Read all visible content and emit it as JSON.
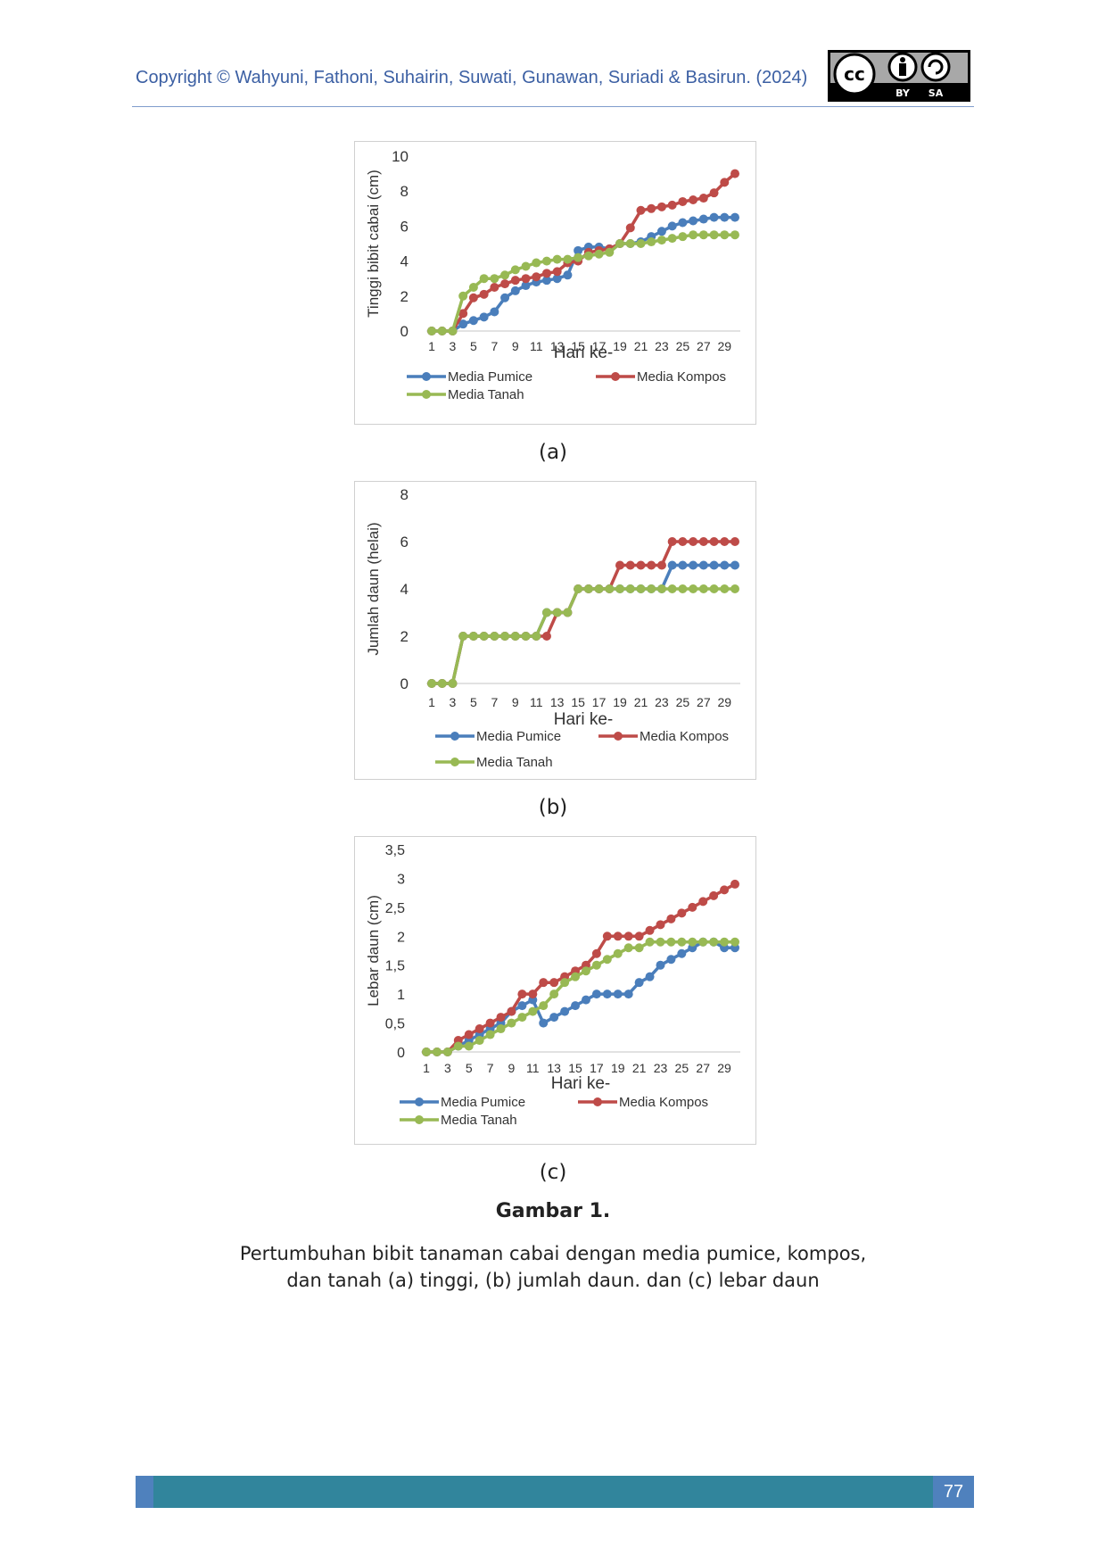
{
  "header": {
    "copyright": "Copyright © Wahyuni, Fathoni, Suhairin, Suwati, Gunawan, Suriadi & Basirun. (2024)",
    "license_badge": {
      "cc": "cc",
      "by": "BY",
      "sa": "SA"
    }
  },
  "colors": {
    "pumice": "#4a7ebb",
    "kompos": "#be4b48",
    "tanah": "#98b954"
  },
  "panel_labels": [
    "(a)",
    "(b)",
    "(c)"
  ],
  "figure": {
    "title": "Gambar 1.",
    "caption_line1": "Pertumbuhan bibit tanaman cabai dengan media pumice, kompos,",
    "caption_line2": "dan tanah (a) tinggi, (b) jumlah daun. dan (c) lebar daun"
  },
  "page_number": "77",
  "chart_data": [
    {
      "type": "line",
      "xlabel": "Hari ke-",
      "ylabel": "Tinggi bibit cabai (cm)",
      "ylim": [
        0,
        10
      ],
      "yticks": [
        "0",
        "2",
        "4",
        "6",
        "8",
        "10"
      ],
      "x": [
        1,
        2,
        3,
        4,
        5,
        6,
        7,
        8,
        9,
        10,
        11,
        12,
        13,
        14,
        15,
        16,
        17,
        18,
        19,
        20,
        21,
        22,
        23,
        24,
        25,
        26,
        27,
        28,
        29,
        30
      ],
      "xtick_labels": [
        "1",
        "3",
        "5",
        "7",
        "9",
        "11",
        "13",
        "15",
        "17",
        "19",
        "21",
        "23",
        "25",
        "27",
        "29"
      ],
      "legend": "bottom",
      "series": [
        {
          "name": "Media Pumice",
          "values": [
            0,
            0,
            0,
            0.4,
            0.6,
            0.8,
            1.1,
            1.9,
            2.3,
            2.6,
            2.8,
            2.9,
            3.0,
            3.2,
            4.6,
            4.8,
            4.8,
            4.7,
            5.0,
            5.0,
            5.1,
            5.4,
            5.7,
            6.0,
            6.2,
            6.3,
            6.4,
            6.5,
            6.5,
            6.5
          ]
        },
        {
          "name": "Media Kompos",
          "values": [
            0,
            0,
            0,
            1.0,
            1.9,
            2.1,
            2.5,
            2.7,
            2.9,
            3.0,
            3.1,
            3.3,
            3.4,
            3.9,
            4.0,
            4.5,
            4.6,
            4.7,
            5.0,
            5.9,
            6.9,
            7.0,
            7.1,
            7.2,
            7.4,
            7.5,
            7.6,
            7.9,
            8.5,
            9.0
          ]
        },
        {
          "name": "Media Tanah",
          "values": [
            0,
            0,
            0,
            2.0,
            2.5,
            3.0,
            3.0,
            3.2,
            3.5,
            3.7,
            3.9,
            4.0,
            4.1,
            4.1,
            4.2,
            4.3,
            4.4,
            4.5,
            5.0,
            5.0,
            5.0,
            5.1,
            5.2,
            5.3,
            5.4,
            5.5,
            5.5,
            5.5,
            5.5,
            5.5
          ]
        }
      ]
    },
    {
      "type": "line",
      "xlabel": "Hari ke-",
      "ylabel": "Jumlah daun (helai)",
      "ylim": [
        0,
        8
      ],
      "yticks": [
        "0",
        "2",
        "4",
        "6",
        "8"
      ],
      "x": [
        1,
        2,
        3,
        4,
        5,
        6,
        7,
        8,
        9,
        10,
        11,
        12,
        13,
        14,
        15,
        16,
        17,
        18,
        19,
        20,
        21,
        22,
        23,
        24,
        25,
        26,
        27,
        28,
        29,
        30
      ],
      "xtick_labels": [
        "1",
        "3",
        "5",
        "7",
        "9",
        "11",
        "13",
        "15",
        "17",
        "19",
        "21",
        "23",
        "25",
        "27",
        "29"
      ],
      "legend": "bottom",
      "series": [
        {
          "name": "Media Pumice",
          "values": [
            0,
            0,
            0,
            2,
            2,
            2,
            2,
            2,
            2,
            2,
            2,
            3,
            3,
            3,
            4,
            4,
            4,
            4,
            4,
            4,
            4,
            4,
            4,
            5,
            5,
            5,
            5,
            5,
            5,
            5
          ]
        },
        {
          "name": "Media Kompos",
          "values": [
            0,
            0,
            0,
            2,
            2,
            2,
            2,
            2,
            2,
            2,
            2,
            2,
            3,
            3,
            4,
            4,
            4,
            4,
            5,
            5,
            5,
            5,
            5,
            6,
            6,
            6,
            6,
            6,
            6,
            6
          ]
        },
        {
          "name": "Media Tanah",
          "values": [
            0,
            0,
            0,
            2,
            2,
            2,
            2,
            2,
            2,
            2,
            2,
            3,
            3,
            3,
            4,
            4,
            4,
            4,
            4,
            4,
            4,
            4,
            4,
            4,
            4,
            4,
            4,
            4,
            4,
            4
          ]
        }
      ]
    },
    {
      "type": "line",
      "xlabel": "Hari ke-",
      "ylabel": "Lebar daun (cm)",
      "ylim": [
        0,
        3.5
      ],
      "yticks": [
        "0",
        "0,5",
        "1",
        "1,5",
        "2",
        "2,5",
        "3",
        "3,5"
      ],
      "x": [
        1,
        2,
        3,
        4,
        5,
        6,
        7,
        8,
        9,
        10,
        11,
        12,
        13,
        14,
        15,
        16,
        17,
        18,
        19,
        20,
        21,
        22,
        23,
        24,
        25,
        26,
        27,
        28,
        29,
        30
      ],
      "xtick_labels": [
        "1",
        "3",
        "5",
        "7",
        "9",
        "11",
        "13",
        "15",
        "17",
        "19",
        "21",
        "23",
        "25",
        "27",
        "29"
      ],
      "legend": "bottom",
      "series": [
        {
          "name": "Media Pumice",
          "values": [
            0,
            0,
            0,
            0.1,
            0.2,
            0.3,
            0.4,
            0.5,
            0.7,
            0.8,
            0.9,
            0.5,
            0.6,
            0.7,
            0.8,
            0.9,
            1.0,
            1.0,
            1.0,
            1.0,
            1.2,
            1.3,
            1.5,
            1.6,
            1.7,
            1.8,
            1.9,
            1.9,
            1.8,
            1.8
          ]
        },
        {
          "name": "Media Kompos",
          "values": [
            0,
            0,
            0,
            0.2,
            0.3,
            0.4,
            0.5,
            0.6,
            0.7,
            1.0,
            1.0,
            1.2,
            1.2,
            1.3,
            1.4,
            1.5,
            1.7,
            2.0,
            2.0,
            2.0,
            2.0,
            2.1,
            2.2,
            2.3,
            2.4,
            2.5,
            2.6,
            2.7,
            2.8,
            2.9
          ]
        },
        {
          "name": "Media Tanah",
          "values": [
            0,
            0,
            0,
            0.1,
            0.1,
            0.2,
            0.3,
            0.4,
            0.5,
            0.6,
            0.7,
            0.8,
            1.0,
            1.2,
            1.3,
            1.4,
            1.5,
            1.6,
            1.7,
            1.8,
            1.8,
            1.9,
            1.9,
            1.9,
            1.9,
            1.9,
            1.9,
            1.9,
            1.9,
            1.9
          ]
        }
      ]
    }
  ]
}
